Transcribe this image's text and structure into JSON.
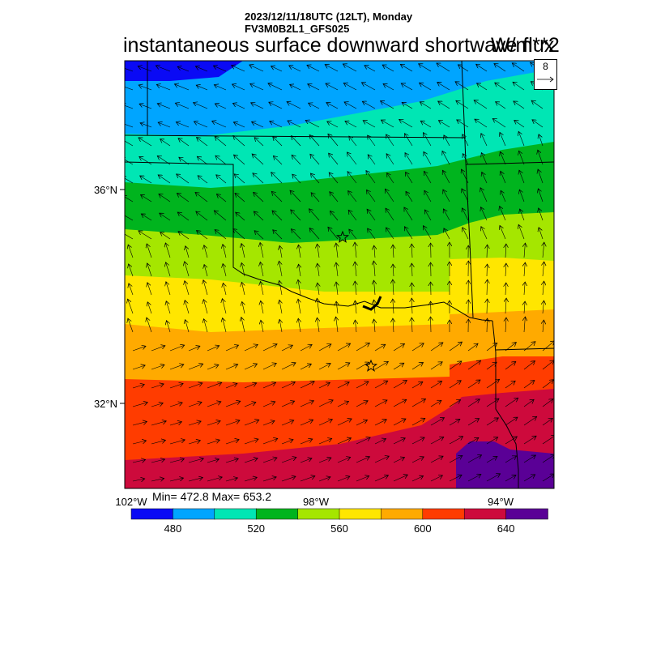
{
  "header": {
    "line1": "2023/12/11/18UTC (12LT), Monday",
    "line2": "FV3M0B2L1_GFS025"
  },
  "title": "instantaneous surface downward shortwave flux",
  "units": "W/m**2",
  "stats": {
    "text": "Min= 472.8 Max= 653.2",
    "min": 472.8,
    "max": 653.2
  },
  "vector_reference": {
    "label": "8"
  },
  "axes": {
    "lat_ticks": [
      "36°N",
      "32°N"
    ],
    "lon_ticks": [
      "102°W",
      "98°W",
      "94°W"
    ]
  },
  "colorbar": {
    "labels": [
      "480",
      "520",
      "560",
      "600",
      "640"
    ],
    "colors": [
      "#0a0af5",
      "#00a5ff",
      "#00e6b4",
      "#00b41e",
      "#a5e600",
      "#ffe600",
      "#ffaa00",
      "#ff3c00",
      "#cd0a3c",
      "#5a0096"
    ]
  },
  "stations": [
    "star",
    "star"
  ]
}
